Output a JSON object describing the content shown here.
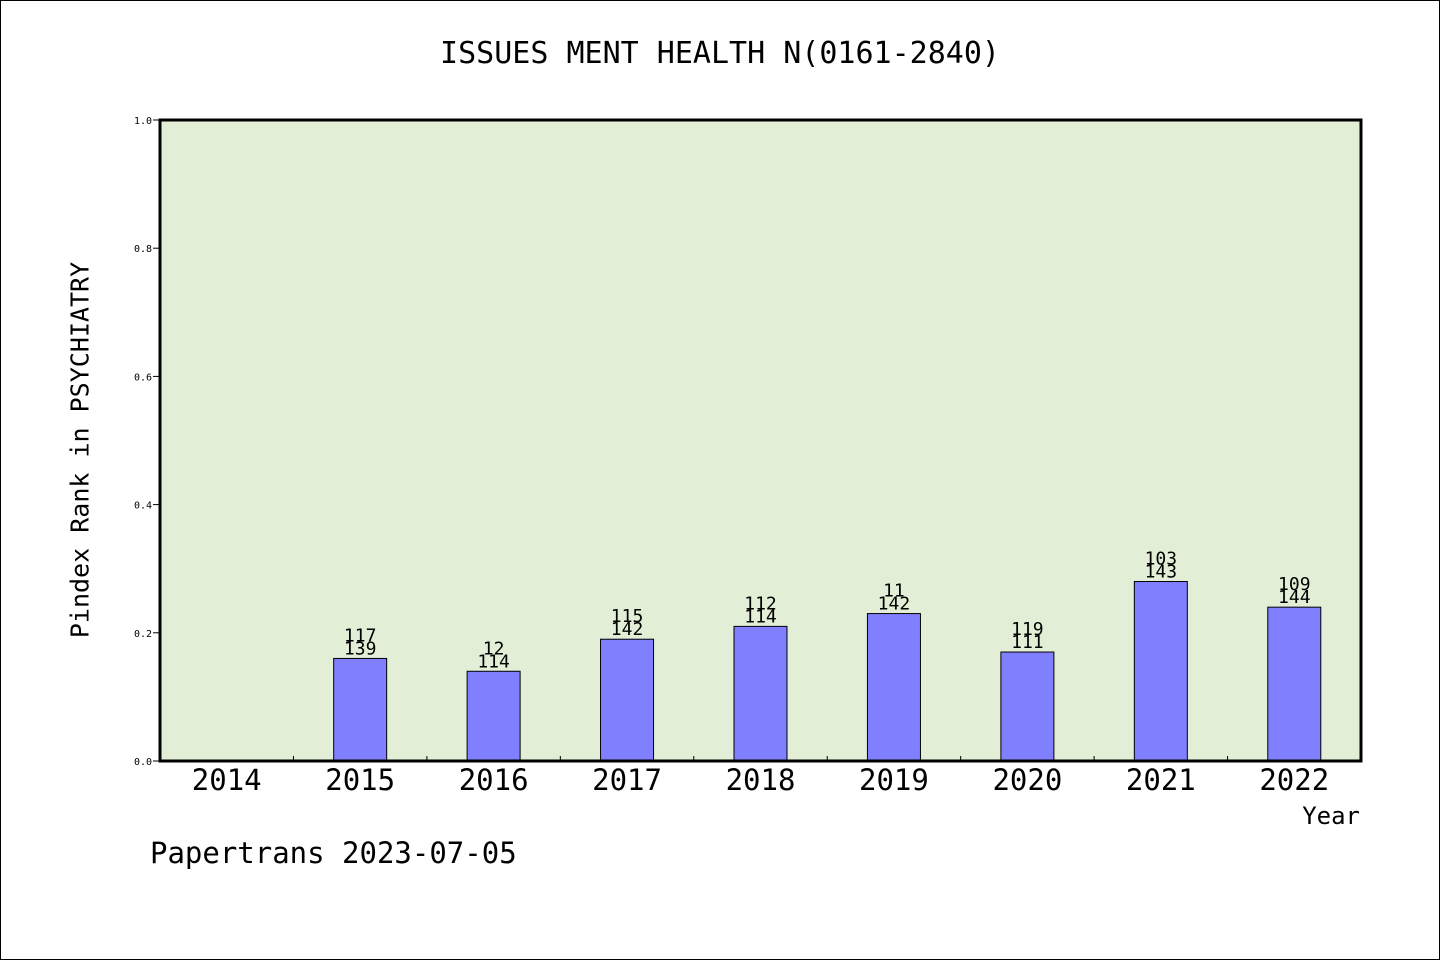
{
  "title": "ISSUES MENT HEALTH N(0161-2840)",
  "footer": "Papertrans 2023-07-05",
  "colors": {
    "plot_background": "#e2efd6",
    "bar_fill": "#8080ff",
    "bar_stroke": "#000000"
  },
  "chart_data": {
    "type": "bar",
    "title": "ISSUES MENT HEALTH N(0161-2840)",
    "xlabel": "Year",
    "ylabel": "Pindex Rank in PSYCHIATRY",
    "ylim": [
      0,
      1.0
    ],
    "yticks": [
      "0.0",
      "0.2",
      "0.4",
      "0.6",
      "0.8",
      "1.0"
    ],
    "categories": [
      "2014",
      "2015",
      "2016",
      "2017",
      "2018",
      "2019",
      "2020",
      "2021",
      "2022"
    ],
    "values": [
      null,
      0.16,
      0.14,
      0.19,
      0.21,
      0.23,
      0.17,
      0.28,
      0.24
    ],
    "labels_top": [
      "",
      "117",
      "12",
      "115",
      "112",
      "11",
      "119",
      "103",
      "109"
    ],
    "labels_bottom": [
      "",
      "139",
      "114",
      "142",
      "114",
      "142",
      "111",
      "143",
      "144"
    ],
    "grid": false,
    "legend": "none"
  }
}
